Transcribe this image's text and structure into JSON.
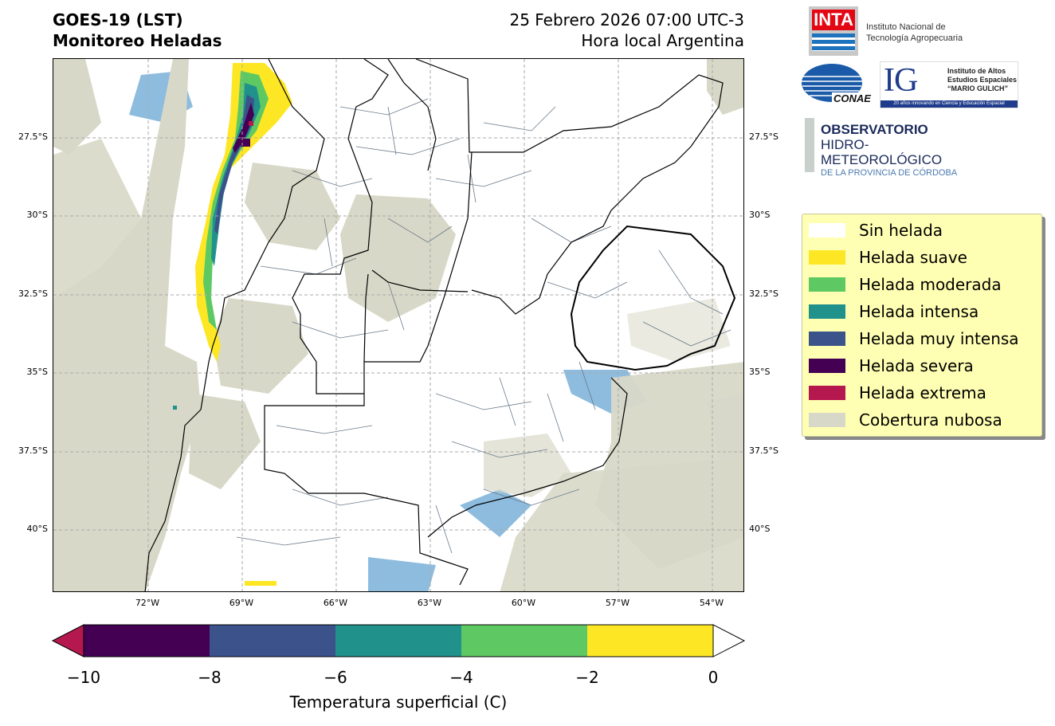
{
  "header": {
    "title_line1": "GOES-19 (LST)",
    "title_line2": "Monitoreo Heladas",
    "date_line": "25 Febrero 2026 07:00 UTC-3",
    "timezone_line": "Hora local Argentina"
  },
  "map": {
    "lat_ticks": [
      "27.5°S",
      "30°S",
      "32.5°S",
      "35°S",
      "37.5°S",
      "40°S"
    ],
    "lon_ticks": [
      "72°W",
      "69°W",
      "66°W",
      "63°W",
      "60°W",
      "57°W",
      "54°W"
    ],
    "gridlines": true
  },
  "colorbar": {
    "title": "Temperatura superficial (C)",
    "tick_labels": [
      "−10",
      "−8",
      "−6",
      "−4",
      "−2",
      "0"
    ],
    "bins": [
      {
        "from": -10,
        "to": -8,
        "color": "#440154"
      },
      {
        "from": -8,
        "to": -6,
        "color": "#3b528b"
      },
      {
        "from": -6,
        "to": -4,
        "color": "#21918c"
      },
      {
        "from": -4,
        "to": -2,
        "color": "#5ec962"
      },
      {
        "from": -2,
        "to": 0,
        "color": "#fde725"
      }
    ],
    "under_color": "#b5174f",
    "over_color": "#ffffff"
  },
  "legend": {
    "items": [
      {
        "label": "Sin helada",
        "color": "#ffffff"
      },
      {
        "label": "Helada suave",
        "color": "#fde725"
      },
      {
        "label": "Helada moderada",
        "color": "#5ec962"
      },
      {
        "label": "Helada intensa",
        "color": "#21918c"
      },
      {
        "label": "Helada muy intensa",
        "color": "#3b528b"
      },
      {
        "label": "Helada severa",
        "color": "#440154"
      },
      {
        "label": "Helada extrema",
        "color": "#b5174f"
      },
      {
        "label": "Cobertura nubosa",
        "color": "#d8d8c8"
      }
    ]
  },
  "logos": {
    "inta": {
      "mark": "INTA",
      "line1": "Instituto Nacional de",
      "line2": "Tecnología Agropecuaria"
    },
    "conae": {
      "mark": "CONAE"
    },
    "ig": {
      "mark": "IG",
      "line1": "Instituto de Altos",
      "line2": "Estudios Espaciales",
      "line3": "“MARIO GULICH”",
      "tagline": "20 años innovando en Ciencia y Educación Espacial"
    },
    "observatorio": {
      "line1": "OBSERVATORIO",
      "line2": "HIDRO-METEOROLÓGICO",
      "line3": "DE LA PROVINCIA DE CÓRDOBA"
    }
  },
  "colors": {
    "cloud": "#d8d8c8",
    "water": "#7ab0d8",
    "boundary": "#000000",
    "department_lines": "#6a7a8a",
    "grid": "#aaaaaa"
  }
}
